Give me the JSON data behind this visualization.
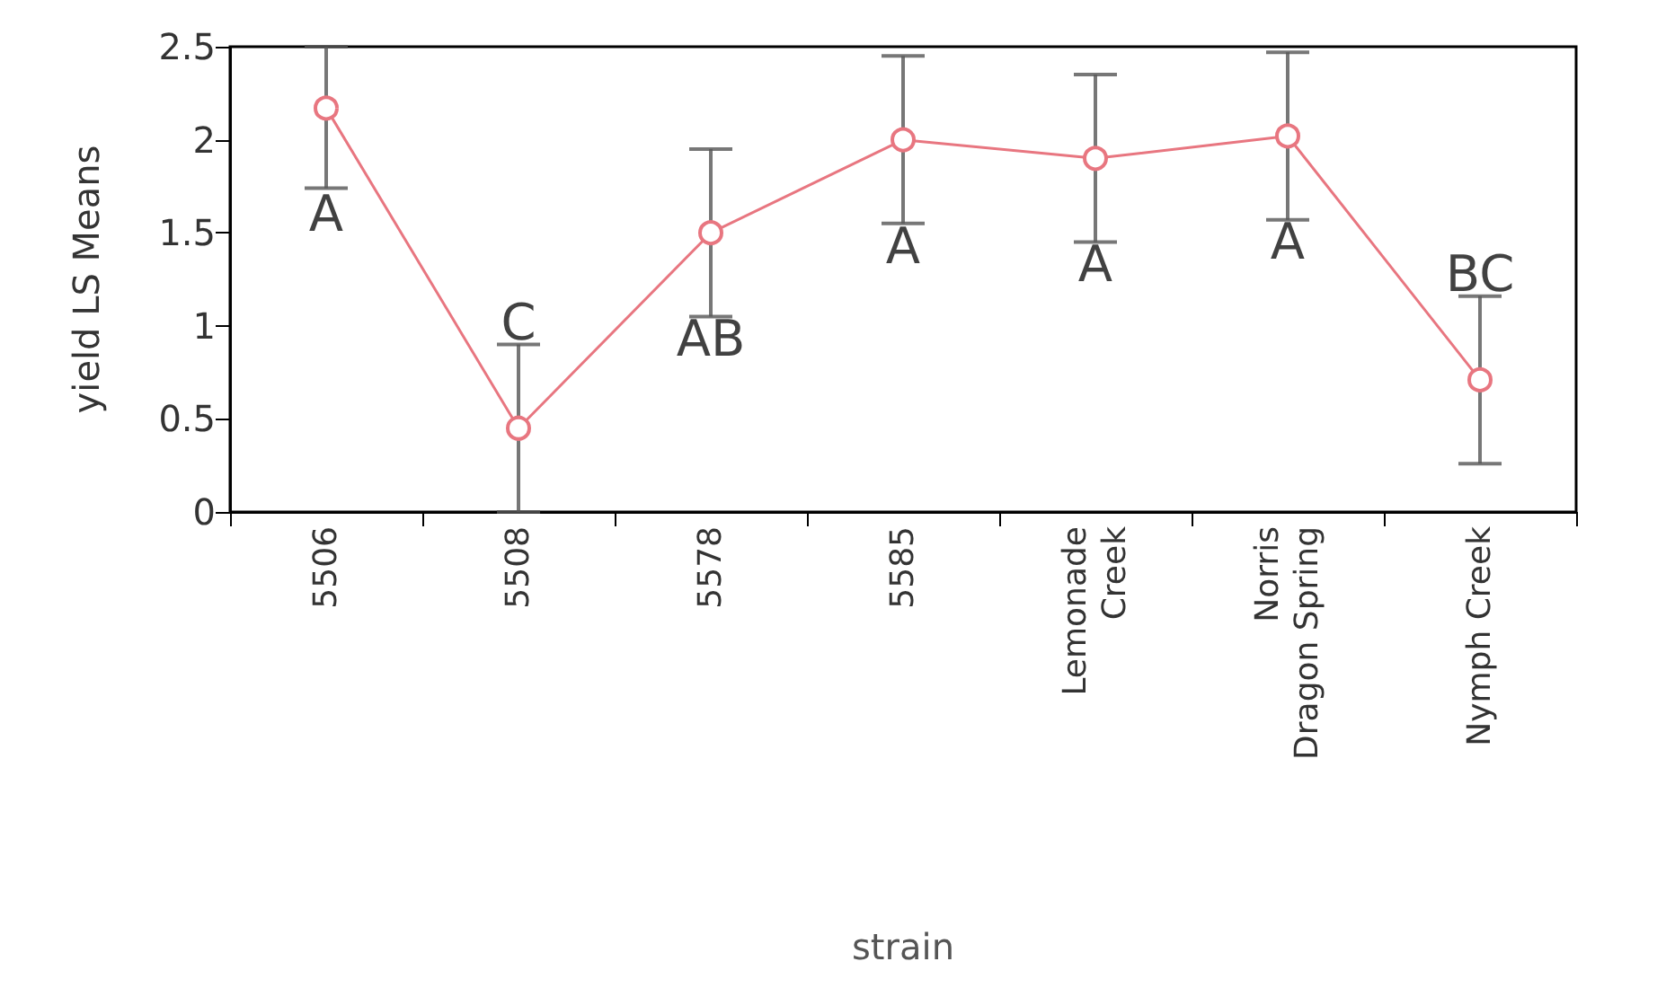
{
  "chart_data": {
    "type": "line",
    "xlabel": "strain",
    "ylabel": "yield LS Means",
    "categories": [
      "5506",
      "5508",
      "5578",
      "5585",
      "Lemonade\nCreek",
      "Norris\nDragon Spring",
      "Nymph Creek"
    ],
    "values": [
      2.17,
      0.45,
      1.5,
      2.0,
      1.9,
      2.02,
      0.71
    ],
    "errors": [
      [
        1.74,
        2.5
      ],
      0.45,
      0.45,
      0.45,
      0.45,
      0.45,
      0.45
    ],
    "color": "#e87680",
    "marker": "circle",
    "line_style": "solid",
    "ylim": [
      0,
      2.5
    ],
    "yticks": [
      0,
      0.5,
      1,
      1.5,
      2,
      2.5
    ],
    "grid": false,
    "annotations": [
      "A",
      "C",
      "AB",
      "A",
      "A",
      "A",
      "BC"
    ]
  }
}
